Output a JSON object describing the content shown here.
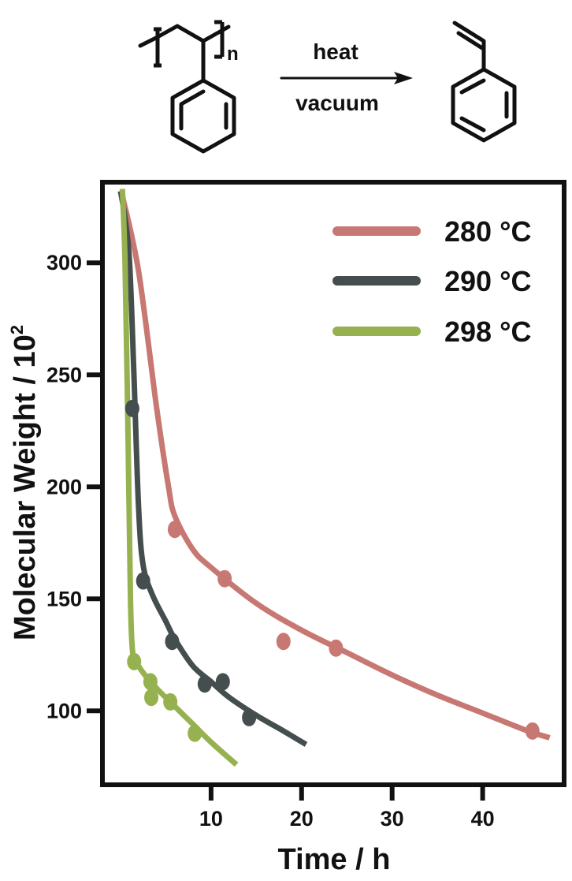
{
  "reaction": {
    "polymer_subscript": "n",
    "arrow_top_label": "heat",
    "arrow_bottom_label": "vacuum"
  },
  "chart_data": {
    "type": "scatter",
    "xlabel": "Time / h",
    "ylabel_main": "Molecular Weight / 10",
    "ylabel_sup": "2",
    "xlim": [
      -2,
      49
    ],
    "ylim": [
      67,
      336
    ],
    "x_ticks": [
      10,
      20,
      30,
      40
    ],
    "y_ticks": [
      100,
      150,
      200,
      250,
      300
    ],
    "grid": false,
    "legend_position": "top-right",
    "series": [
      {
        "name": "280 °C",
        "color": "#c87872",
        "points": [
          [
            6.0,
            181
          ],
          [
            11.5,
            159
          ],
          [
            18.0,
            131
          ],
          [
            23.8,
            128
          ],
          [
            45.5,
            91
          ]
        ],
        "fit": [
          [
            0.2,
            330
          ],
          [
            2,
            296
          ],
          [
            4,
            235
          ],
          [
            5.3,
            200
          ],
          [
            6,
            187
          ],
          [
            8,
            172
          ],
          [
            10,
            164
          ],
          [
            15,
            148
          ],
          [
            20,
            136
          ],
          [
            25,
            126
          ],
          [
            30,
            116
          ],
          [
            35,
            107
          ],
          [
            40,
            99
          ],
          [
            45,
            91
          ],
          [
            47.4,
            88
          ]
        ]
      },
      {
        "name": "290 °C",
        "color": "#454e4f",
        "points": [
          [
            1.3,
            235
          ],
          [
            2.5,
            158
          ],
          [
            5.7,
            131
          ],
          [
            9.3,
            112
          ],
          [
            11.3,
            113
          ],
          [
            14.2,
            97
          ]
        ],
        "fit": [
          [
            0,
            332
          ],
          [
            0.5,
            320
          ],
          [
            1.0,
            300
          ],
          [
            1.5,
            248
          ],
          [
            2.0,
            190
          ],
          [
            2.5,
            165
          ],
          [
            3.5,
            152
          ],
          [
            5,
            140
          ],
          [
            6,
            132
          ],
          [
            8,
            120
          ],
          [
            10,
            113
          ],
          [
            12,
            106
          ],
          [
            15,
            98
          ],
          [
            18,
            91
          ],
          [
            20.5,
            85
          ]
        ]
      },
      {
        "name": "298 °C",
        "color": "#96b250",
        "points": [
          [
            1.5,
            122
          ],
          [
            3.3,
            113
          ],
          [
            3.4,
            106
          ],
          [
            5.5,
            104
          ],
          [
            8.2,
            90
          ]
        ],
        "fit": [
          [
            0.2,
            333
          ],
          [
            0.5,
            300
          ],
          [
            0.8,
            230
          ],
          [
            1.1,
            150
          ],
          [
            1.3,
            128
          ],
          [
            1.6,
            123
          ],
          [
            2.5,
            117
          ],
          [
            4,
            110
          ],
          [
            6,
            102
          ],
          [
            8,
            94
          ],
          [
            10,
            86
          ],
          [
            12.8,
            76
          ]
        ]
      }
    ]
  }
}
